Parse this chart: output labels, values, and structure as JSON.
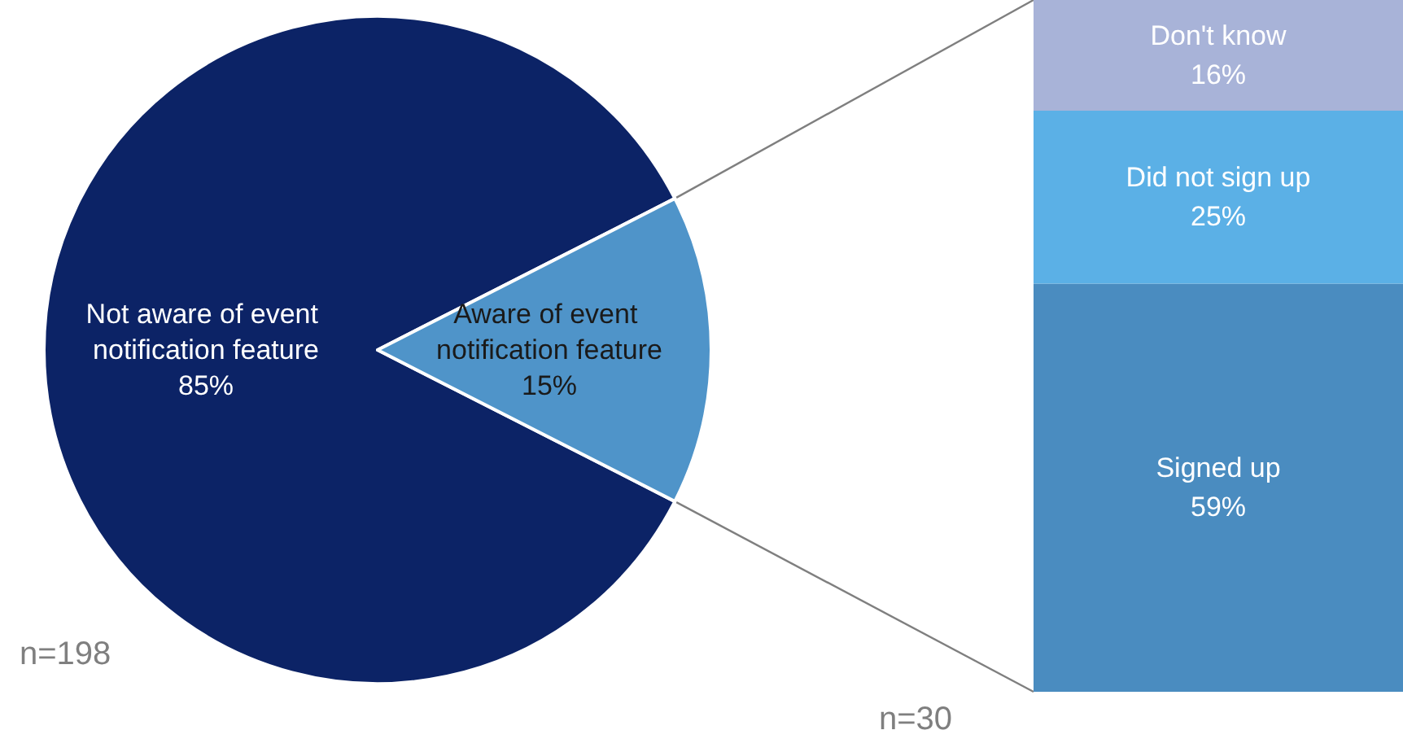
{
  "chart_data": [
    {
      "type": "pie",
      "categories": [
        "Not aware of event notification feature",
        "Aware of event notification feature"
      ],
      "values": [
        85,
        15
      ],
      "value_labels": [
        "85%",
        "15%"
      ],
      "colors": [
        "#0c2366",
        "#4f94c9"
      ],
      "annotations": [
        "n=198"
      ]
    },
    {
      "type": "bar",
      "stacked": true,
      "categories": [
        null
      ],
      "series": [
        {
          "name": "Signed up",
          "color": "#4a8cc0",
          "values": [
            59
          ],
          "value_labels": [
            "59%"
          ]
        },
        {
          "name": "Did not sign up",
          "color": "#5bb0e6",
          "values": [
            25
          ],
          "value_labels": [
            "25%"
          ]
        },
        {
          "name": "Don't know",
          "color": "#a8b3d8",
          "values": [
            16
          ],
          "value_labels": [
            "16%"
          ]
        }
      ],
      "annotations": [
        "n=30"
      ]
    }
  ]
}
